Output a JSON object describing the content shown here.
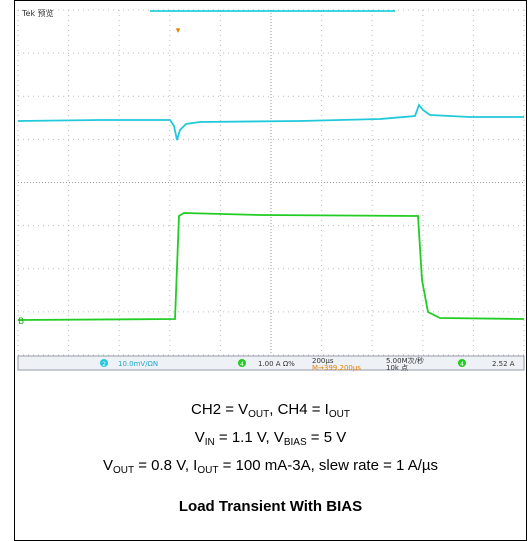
{
  "scope": {
    "brand": "Tek 预览",
    "status": {
      "ch2_num": "2",
      "ch2_scale": "10.0mV/ΩN",
      "ch4_num": "4",
      "ch4_scale": "1.00 A Ω%",
      "timebase": "200µs",
      "position": "M→399.200µs",
      "sample_rate": "5.00M次/秒",
      "record": "10k 点",
      "trigger_ch": "4",
      "trigger_level": "2.52 A"
    }
  },
  "caption": {
    "line1": [
      "CH2 = V",
      "OUT",
      ", CH4 = I",
      "OUT"
    ],
    "line2": [
      "V",
      "IN",
      " = 1.1 V, V",
      "BIAS",
      " = 5 V"
    ],
    "line3": [
      "V",
      "OUT",
      " = 0.8 V, I",
      "OUT",
      " = 100 mA-3A, slew rate = 1 A/µs"
    ],
    "title": "Load Transient With BIAS"
  }
}
